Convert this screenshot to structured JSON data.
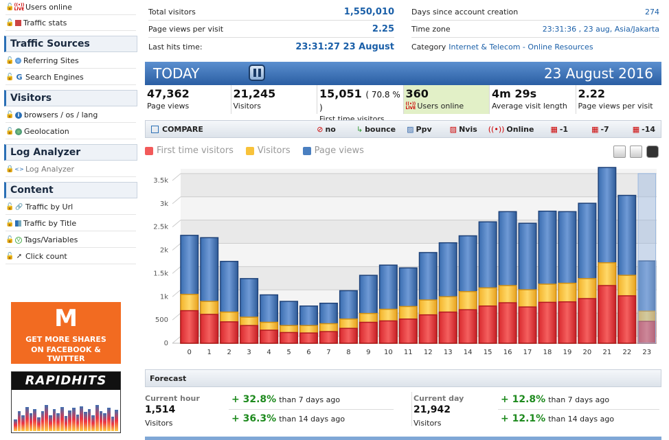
{
  "sidebar": {
    "top_items": [
      {
        "label": "Users online",
        "icon": "live-icon"
      },
      {
        "label": "Traffic stats",
        "icon": "traffic-stats-icon"
      }
    ],
    "sections": [
      {
        "title": "Traffic Sources",
        "items": [
          {
            "label": "Referring Sites",
            "icon": "globe-icon"
          },
          {
            "label": "Search Engines",
            "icon": "google-icon"
          }
        ]
      },
      {
        "title": "Visitors",
        "items": [
          {
            "label": "browsers / os / lang",
            "icon": "info-icon"
          },
          {
            "label": "Geolocation",
            "icon": "earth-icon"
          }
        ]
      },
      {
        "title": "Log Analyzer",
        "items": [
          {
            "label": "Log Analyzer",
            "icon": "code-icon"
          }
        ]
      },
      {
        "title": "Content",
        "items": [
          {
            "label": "Traffic by Url",
            "icon": "link-icon"
          },
          {
            "label": "Traffic by Title",
            "icon": "title-icon"
          },
          {
            "label": "Tags/Variables",
            "icon": "tag-icon"
          },
          {
            "label": "Click count",
            "icon": "cursor-icon"
          }
        ]
      }
    ],
    "ads": {
      "ad1": {
        "logo": "M",
        "line1": "GET MORE SHARES",
        "line2": "ON FACEBOOK & TWITTER",
        "color": "#f26b21"
      },
      "ad2": {
        "title": "RAPIDHITS"
      }
    }
  },
  "summary": {
    "left": [
      {
        "label": "Total visitors",
        "value": "1,550,010"
      },
      {
        "label": "Page views per visit",
        "value": "2.25"
      },
      {
        "label": "Last hits time:",
        "value": "23:31:27 23 August"
      }
    ],
    "right": [
      {
        "label": "Days since account creation",
        "value": "274"
      },
      {
        "label": "Time zone",
        "value": "23:31:36 , 23 aug, Asia/Jakarta"
      },
      {
        "label": "Category",
        "value": "Internet & Telecom - Online Resources"
      }
    ]
  },
  "today": {
    "label": "TODAY",
    "date": "23 August 2016"
  },
  "stats": [
    {
      "value": "47,362",
      "extra": "",
      "label": "Page views"
    },
    {
      "value": "21,245",
      "extra": "",
      "label": "Visitors"
    },
    {
      "value": "15,051",
      "extra": "( 70.8 % )",
      "label": "First time visitors"
    },
    {
      "value": "360",
      "extra": "",
      "label": "Users online"
    },
    {
      "value": "4m 29s",
      "extra": "",
      "label": "Average visit length"
    },
    {
      "value": "2.22",
      "extra": "",
      "label": "Page views per visit"
    }
  ],
  "compare": {
    "title": "COMPARE",
    "buttons": [
      "no",
      "bounce",
      "Ppv",
      "Nvis",
      "Online",
      "-1",
      "-7",
      "-14"
    ]
  },
  "chart_data": {
    "type": "bar",
    "legend": [
      {
        "name": "First time visitors",
        "color": "#e8353a"
      },
      {
        "name": "Visitors",
        "color": "#f8c23a"
      },
      {
        "name": "Page views",
        "color": "#4a7fc0"
      }
    ],
    "categories": [
      "0",
      "1",
      "2",
      "3",
      "4",
      "5",
      "6",
      "7",
      "8",
      "9",
      "10",
      "11",
      "12",
      "13",
      "14",
      "15",
      "16",
      "17",
      "18",
      "19",
      "20",
      "21",
      "22",
      "23"
    ],
    "series": [
      {
        "name": "First time visitors",
        "values": [
          700,
          620,
          460,
          380,
          280,
          230,
          220,
          250,
          320,
          450,
          480,
          520,
          610,
          670,
          720,
          800,
          870,
          780,
          880,
          890,
          960,
          1240,
          1020,
          470
        ]
      },
      {
        "name": "Visitors",
        "values": [
          1050,
          900,
          670,
          560,
          450,
          380,
          380,
          420,
          520,
          640,
          730,
          790,
          930,
          1000,
          1110,
          1190,
          1240,
          1150,
          1270,
          1290,
          1390,
          1730,
          1460,
          690
        ]
      },
      {
        "name": "Page views",
        "values": [
          2320,
          2270,
          1760,
          1390,
          1040,
          900,
          800,
          860,
          1130,
          1460,
          1680,
          1620,
          1950,
          2160,
          2310,
          2610,
          2830,
          2580,
          2840,
          2830,
          3010,
          3780,
          3180,
          1770
        ]
      }
    ],
    "ylim": [
      0,
      3750
    ],
    "yticks": [
      "0",
      "500",
      "1k",
      "1.5k",
      "2k",
      "2.5k",
      "3k",
      "3.5k"
    ],
    "ytick_values": [
      0,
      500,
      1000,
      1500,
      2000,
      2500,
      3000,
      3500
    ],
    "forecast_last": 3650
  },
  "forecast": {
    "title": "Forecast",
    "hour": {
      "label": "Current hour",
      "value": "1,514",
      "unit": "Visitors",
      "p1": "+ 32.8%",
      "p1t": "than 7 days ago",
      "p2": "+ 36.3%",
      "p2t": "than 14 days ago"
    },
    "day": {
      "label": "Current day",
      "value": "21,942",
      "unit": "Visitors",
      "p1": "+ 12.8%",
      "p1t": "than 7 days ago",
      "p2": "+ 12.1%",
      "p2t": "than 14 days ago"
    }
  }
}
